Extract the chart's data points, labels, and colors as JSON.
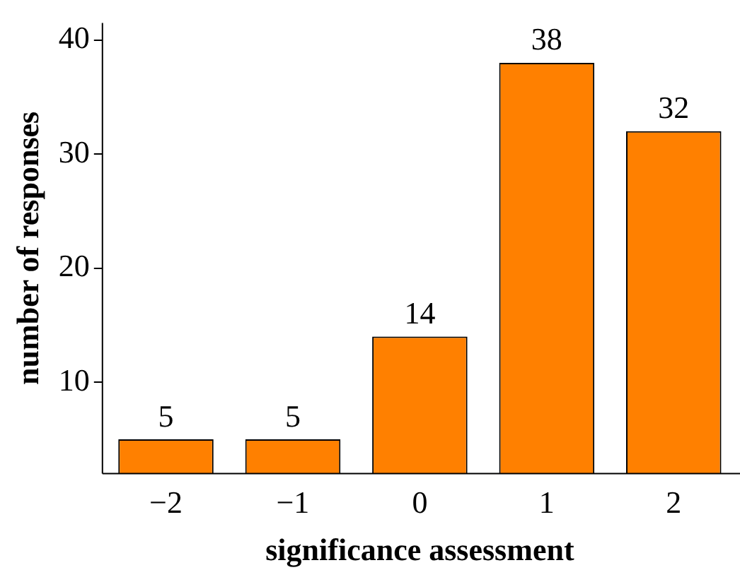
{
  "chart_data": {
    "type": "bar",
    "xlabel": "significance assessment",
    "ylabel": "number of responses",
    "categories": [
      "−2",
      "−1",
      "0",
      "1",
      "2"
    ],
    "values": [
      5,
      5,
      14,
      38,
      32
    ],
    "color": "#ff8000",
    "ylim": [
      2,
      41.5
    ],
    "yticks": [
      10,
      20,
      30,
      40
    ],
    "grid": false,
    "data_labels": true
  }
}
